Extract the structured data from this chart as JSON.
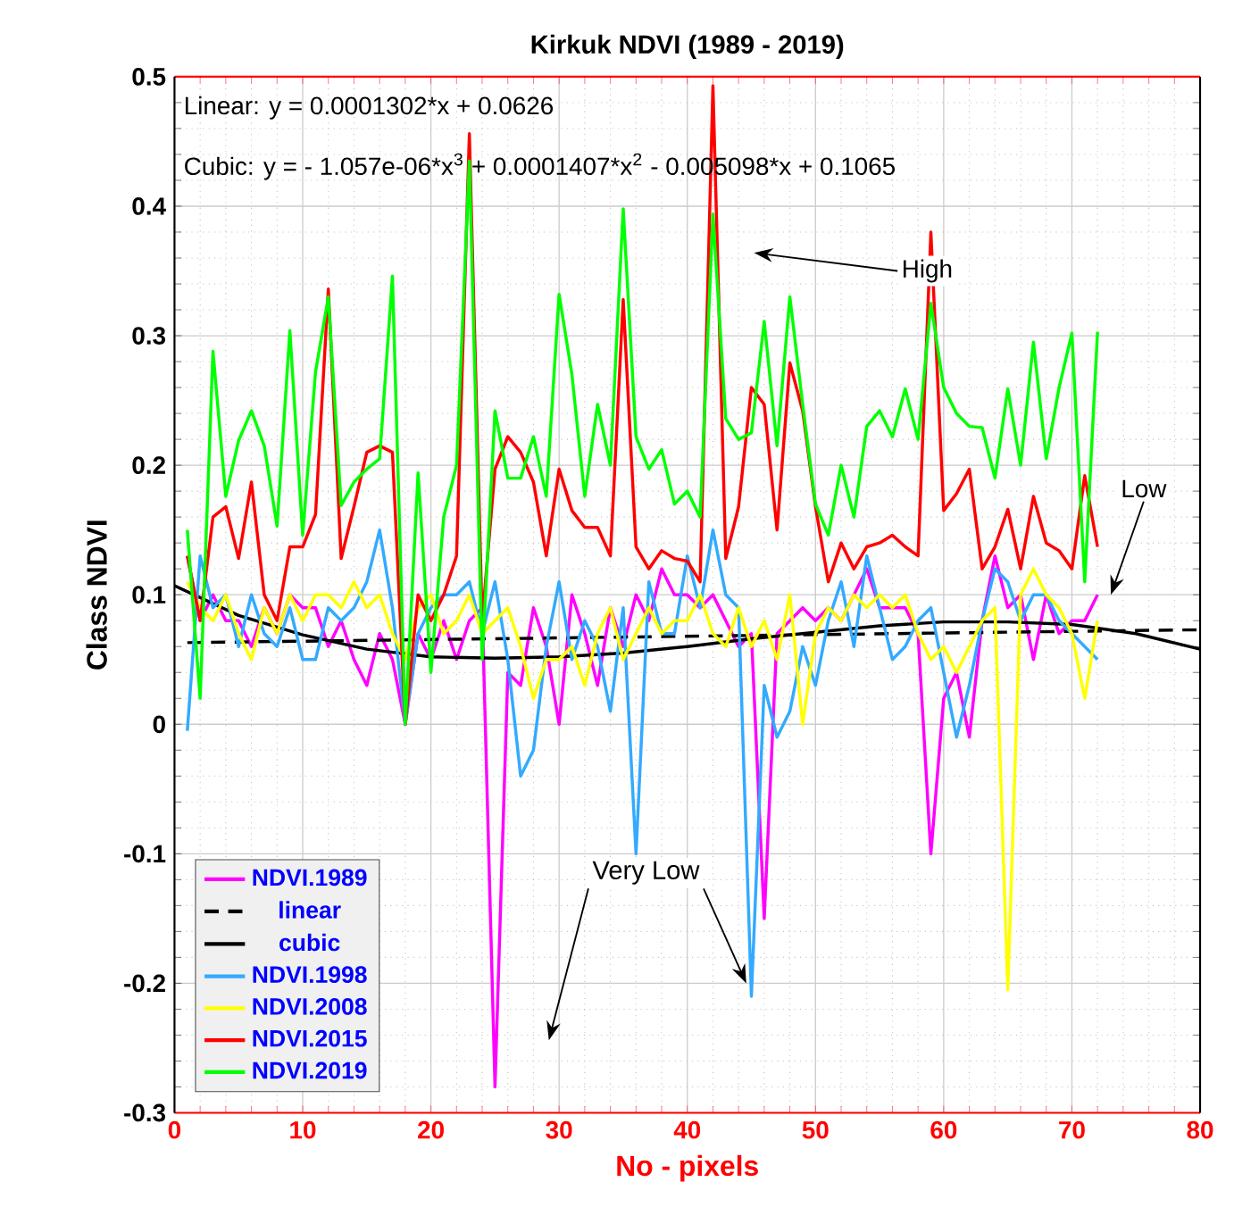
{
  "chart_data": {
    "type": "line",
    "title": "Kirkuk NDVI (1989 - 2019)",
    "xlabel": "No - pixels",
    "ylabel": "Class NDVI",
    "xlim": [
      0,
      80
    ],
    "ylim": [
      -0.3,
      0.5
    ],
    "xticks": [
      0,
      10,
      20,
      30,
      40,
      50,
      60,
      70,
      80
    ],
    "yticks": [
      -0.3,
      -0.2,
      -0.1,
      0,
      0.1,
      0.2,
      0.3,
      0.4,
      0.5
    ],
    "grid": true,
    "legend": "bottom left",
    "line_style": "solid",
    "x": [
      1,
      2,
      3,
      4,
      5,
      6,
      7,
      8,
      9,
      10,
      11,
      12,
      13,
      14,
      15,
      16,
      17,
      18,
      19,
      20,
      21,
      22,
      23,
      24,
      25,
      26,
      27,
      28,
      29,
      30,
      31,
      32,
      33,
      34,
      35,
      36,
      37,
      38,
      39,
      40,
      41,
      42,
      43,
      44,
      45,
      46,
      47,
      48,
      49,
      50,
      51,
      52,
      53,
      54,
      55,
      56,
      57,
      58,
      59,
      60,
      61,
      62,
      63,
      64,
      65,
      66,
      67,
      68,
      69,
      70,
      71,
      72
    ],
    "annotations": [
      "Linear:  y = 0.0001302*x + 0.0626",
      "Cubic:  y = - 1.057e-06*x$^{3}$ + 0.0001407*x$^{2}$ - 0.005098*x + 0.1065",
      "High",
      "Low",
      {
        "text": "Very Low",
        "x": 44.6,
        "y": -0.2
      }
    ],
    "series": [
      {
        "name": "NDVI.1989",
        "color": "#ff00ff",
        "values": [
          0.13,
          0.08,
          0.1,
          0.08,
          0.08,
          0.06,
          0.09,
          0.07,
          0.1,
          0.09,
          0.09,
          0.06,
          0.08,
          0.05,
          0.03,
          0.07,
          0.05,
          0.0,
          0.07,
          0.05,
          0.08,
          0.05,
          0.08,
          0.09,
          -0.28,
          0.04,
          0.03,
          0.09,
          0.06,
          0.0,
          0.1,
          0.07,
          0.03,
          0.09,
          0.06,
          0.1,
          0.08,
          0.12,
          0.1,
          0.1,
          0.09,
          0.1,
          0.08,
          0.06,
          0.07,
          -0.15,
          0.07,
          0.08,
          0.09,
          0.08,
          0.09,
          0.08,
          0.1,
          0.12,
          0.09,
          0.09,
          0.09,
          0.07,
          -0.1,
          0.02,
          0.04,
          -0.01,
          0.08,
          0.13,
          0.09,
          0.1,
          0.05,
          0.1,
          0.07,
          0.08,
          0.08,
          0.1
        ]
      },
      {
        "name": "linear",
        "color": "#000000",
        "line_style": "dashed",
        "x": [
          1,
          80
        ],
        "values": [
          0.063,
          0.073
        ]
      },
      {
        "name": "cubic",
        "color": "#000000",
        "x": [
          0,
          5,
          10,
          15,
          20,
          25,
          30,
          35,
          40,
          45,
          50,
          55,
          60,
          65,
          70,
          75,
          80
        ],
        "values": [
          0.107,
          0.084,
          0.069,
          0.058,
          0.052,
          0.051,
          0.052,
          0.055,
          0.06,
          0.066,
          0.071,
          0.076,
          0.079,
          0.079,
          0.077,
          0.07,
          0.058
        ]
      },
      {
        "name": "NDVI.1998",
        "color": "#33aaff",
        "values": [
          -0.005,
          0.13,
          0.09,
          0.1,
          0.06,
          0.1,
          0.07,
          0.06,
          0.09,
          0.05,
          0.05,
          0.09,
          0.08,
          0.09,
          0.11,
          0.15,
          0.09,
          0.0,
          0.07,
          0.09,
          0.1,
          0.1,
          0.11,
          0.07,
          0.11,
          0.05,
          -0.04,
          -0.02,
          0.06,
          0.11,
          0.05,
          0.08,
          0.06,
          0.01,
          0.09,
          -0.1,
          0.11,
          0.07,
          0.07,
          0.13,
          0.09,
          0.15,
          0.1,
          0.09,
          -0.21,
          0.03,
          -0.01,
          0.01,
          0.06,
          0.03,
          0.08,
          0.11,
          0.06,
          0.13,
          0.09,
          0.05,
          0.06,
          0.08,
          0.09,
          0.04,
          -0.01,
          0.03,
          0.08,
          0.12,
          0.11,
          0.08,
          0.1,
          0.1,
          0.08,
          0.07,
          0.06,
          0.05
        ]
      },
      {
        "name": "NDVI.2008",
        "color": "#ffff00",
        "values": [
          0.11,
          0.09,
          0.08,
          0.1,
          0.07,
          0.05,
          0.09,
          0.07,
          0.1,
          0.08,
          0.1,
          0.1,
          0.09,
          0.11,
          0.09,
          0.1,
          0.07,
          0.05,
          0.09,
          0.1,
          0.07,
          0.08,
          0.1,
          0.07,
          0.08,
          0.09,
          0.06,
          0.02,
          0.05,
          0.05,
          0.06,
          0.03,
          0.07,
          0.09,
          0.05,
          0.07,
          0.09,
          0.07,
          0.08,
          0.08,
          0.1,
          0.07,
          0.06,
          0.09,
          0.06,
          0.08,
          0.05,
          0.1,
          0.0,
          0.07,
          0.09,
          0.08,
          0.1,
          0.09,
          0.1,
          0.09,
          0.1,
          0.07,
          0.05,
          0.06,
          0.04,
          0.06,
          0.08,
          0.09,
          -0.205,
          0.1,
          0.12,
          0.1,
          0.09,
          0.07,
          0.02,
          0.08
        ]
      },
      {
        "name": "NDVI.2015",
        "color": "#ff0000",
        "values": [
          0.13,
          0.08,
          0.16,
          0.168,
          0.128,
          0.187,
          0.1,
          0.08,
          0.137,
          0.137,
          0.162,
          0.336,
          0.128,
          0.168,
          0.21,
          0.215,
          0.21,
          0.0,
          0.1,
          0.08,
          0.1,
          0.13,
          0.456,
          0.08,
          0.197,
          0.222,
          0.21,
          0.187,
          0.13,
          0.197,
          0.165,
          0.152,
          0.152,
          0.13,
          0.328,
          0.137,
          0.12,
          0.134,
          0.128,
          0.126,
          0.11,
          0.493,
          0.128,
          0.168,
          0.26,
          0.247,
          0.15,
          0.279,
          0.242,
          0.168,
          0.11,
          0.14,
          0.12,
          0.137,
          0.14,
          0.146,
          0.137,
          0.13,
          0.38,
          0.165,
          0.178,
          0.197,
          0.12,
          0.137,
          0.166,
          0.12,
          0.176,
          0.14,
          0.134,
          0.12,
          0.192,
          0.137
        ]
      },
      {
        "name": "NDVI.2019",
        "color": "#00ff00",
        "values": [
          0.15,
          0.02,
          0.288,
          0.176,
          0.219,
          0.242,
          0.215,
          0.153,
          0.304,
          0.146,
          0.272,
          0.33,
          0.169,
          0.187,
          0.197,
          0.205,
          0.346,
          0.0,
          0.194,
          0.04,
          0.16,
          0.2,
          0.435,
          0.05,
          0.242,
          0.19,
          0.19,
          0.222,
          0.176,
          0.332,
          0.27,
          0.176,
          0.247,
          0.2,
          0.398,
          0.222,
          0.197,
          0.212,
          0.17,
          0.18,
          0.16,
          0.394,
          0.236,
          0.22,
          0.225,
          0.311,
          0.215,
          0.33,
          0.247,
          0.17,
          0.146,
          0.2,
          0.16,
          0.23,
          0.242,
          0.222,
          0.259,
          0.22,
          0.325,
          0.26,
          0.24,
          0.23,
          0.229,
          0.19,
          0.259,
          0.2,
          0.295,
          0.205,
          0.26,
          0.302,
          0.11,
          0.303
        ]
      }
    ]
  }
}
